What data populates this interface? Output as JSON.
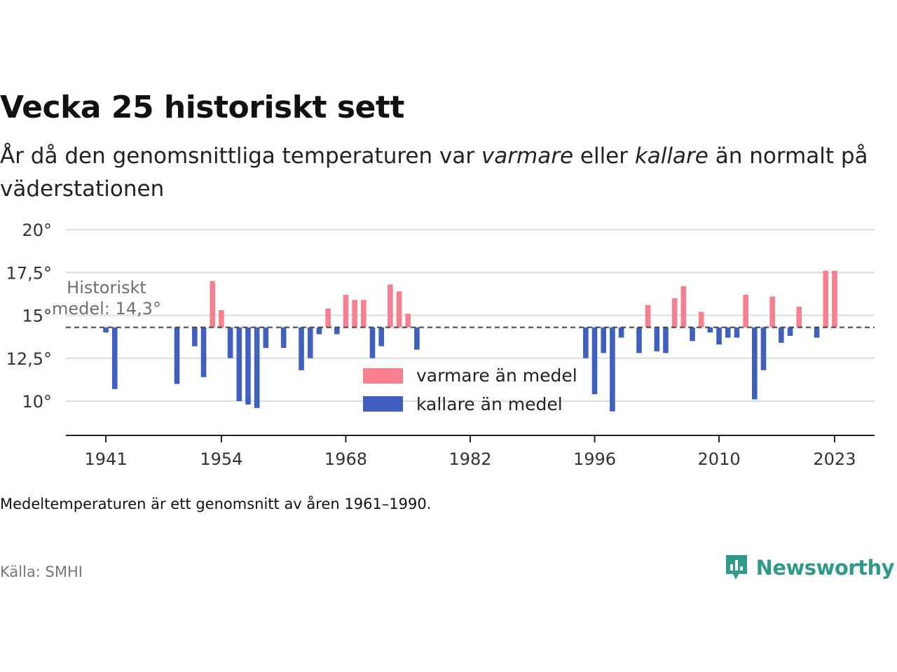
{
  "header": {
    "title": "Vecka 25 historiskt sett",
    "subtitle_before": "År då den genomsnittliga temperaturen var ",
    "subtitle_warm": "varmare",
    "subtitle_middle": " eller ",
    "subtitle_cold": "kallare",
    "subtitle_after": " än normalt på väderstationen"
  },
  "footer": {
    "note": "Medeltemperaturen är ett genomsnitt av åren 1961–1990.",
    "source": "Källa: SMHI",
    "brand": "Newsworthy",
    "brand_color": "#2f9a8a"
  },
  "chart_data": {
    "type": "bar",
    "baseline": 14.3,
    "baseline_label_line1": "Historiskt",
    "baseline_label_line2": "medel: 14,3°",
    "ylim": [
      8,
      20
    ],
    "y_ticks": [
      10,
      12.5,
      15,
      17.5,
      20
    ],
    "y_tick_labels": [
      "10°",
      "12,5°",
      "15°",
      "17,5°",
      "20°"
    ],
    "xlim": [
      1936.5,
      2027.5
    ],
    "x_ticks": [
      1941,
      1954,
      1968,
      1982,
      1996,
      2010,
      2023
    ],
    "x_tick_labels": [
      "1941",
      "1954",
      "1968",
      "1982",
      "1996",
      "2010",
      "2023"
    ],
    "grid": true,
    "legend_position": "center",
    "series": [
      {
        "name": "varmare än medel",
        "color": "#f77f8f"
      },
      {
        "name": "kallare än medel",
        "color": "#3f60bf"
      }
    ],
    "points": [
      {
        "x": 1941,
        "y": 14.0
      },
      {
        "x": 1942,
        "y": 10.7
      },
      {
        "x": 1949,
        "y": 11.0
      },
      {
        "x": 1951,
        "y": 13.2
      },
      {
        "x": 1952,
        "y": 11.4
      },
      {
        "x": 1953,
        "y": 17.0
      },
      {
        "x": 1954,
        "y": 15.3
      },
      {
        "x": 1955,
        "y": 12.5
      },
      {
        "x": 1956,
        "y": 10.0
      },
      {
        "x": 1957,
        "y": 9.8
      },
      {
        "x": 1958,
        "y": 9.6
      },
      {
        "x": 1959,
        "y": 13.1
      },
      {
        "x": 1961,
        "y": 13.1
      },
      {
        "x": 1963,
        "y": 11.8
      },
      {
        "x": 1964,
        "y": 12.5
      },
      {
        "x": 1965,
        "y": 13.9
      },
      {
        "x": 1966,
        "y": 15.4
      },
      {
        "x": 1967,
        "y": 13.9
      },
      {
        "x": 1968,
        "y": 16.2
      },
      {
        "x": 1969,
        "y": 15.9
      },
      {
        "x": 1970,
        "y": 15.9
      },
      {
        "x": 1971,
        "y": 12.5
      },
      {
        "x": 1972,
        "y": 13.2
      },
      {
        "x": 1973,
        "y": 16.8
      },
      {
        "x": 1974,
        "y": 16.4
      },
      {
        "x": 1975,
        "y": 15.1
      },
      {
        "x": 1976,
        "y": 13.0
      },
      {
        "x": 1995,
        "y": 12.5
      },
      {
        "x": 1996,
        "y": 10.4
      },
      {
        "x": 1997,
        "y": 12.8
      },
      {
        "x": 1998,
        "y": 9.4
      },
      {
        "x": 1999,
        "y": 13.7
      },
      {
        "x": 2001,
        "y": 12.8
      },
      {
        "x": 2002,
        "y": 15.6
      },
      {
        "x": 2003,
        "y": 12.9
      },
      {
        "x": 2004,
        "y": 12.8
      },
      {
        "x": 2005,
        "y": 16.0
      },
      {
        "x": 2006,
        "y": 16.7
      },
      {
        "x": 2007,
        "y": 13.5
      },
      {
        "x": 2008,
        "y": 15.2
      },
      {
        "x": 2009,
        "y": 14.0
      },
      {
        "x": 2010,
        "y": 13.3
      },
      {
        "x": 2011,
        "y": 13.7
      },
      {
        "x": 2012,
        "y": 13.7
      },
      {
        "x": 2013,
        "y": 16.2
      },
      {
        "x": 2014,
        "y": 10.1
      },
      {
        "x": 2015,
        "y": 11.8
      },
      {
        "x": 2016,
        "y": 16.1
      },
      {
        "x": 2017,
        "y": 13.4
      },
      {
        "x": 2018,
        "y": 13.8
      },
      {
        "x": 2019,
        "y": 15.5
      },
      {
        "x": 2021,
        "y": 13.7
      },
      {
        "x": 2022,
        "y": 17.6
      },
      {
        "x": 2023,
        "y": 17.6
      }
    ]
  }
}
